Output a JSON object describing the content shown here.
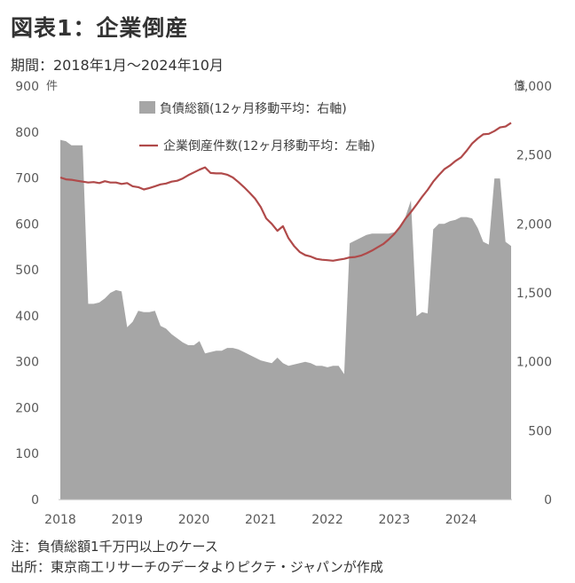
{
  "header": {
    "title": "図表1：企業倒産",
    "subtitle": "期間：2018年1月～2024年10月"
  },
  "notes": {
    "note": "注：負債総額1千万円以上のケース",
    "source": "出所：東京商工リサーチのデータよりピクテ・ジャパンが作成"
  },
  "chart_data": {
    "type": "area",
    "left_axis": {
      "unit": "件",
      "ylim": [
        0,
        900
      ],
      "ticks": [
        "0",
        "100",
        "200",
        "300",
        "400",
        "500",
        "600",
        "700",
        "800",
        "900"
      ]
    },
    "right_axis": {
      "unit": "億",
      "ylim": [
        0,
        3000
      ],
      "ticks": [
        "0",
        "500",
        "1,000",
        "1,500",
        "2,000",
        "2,500",
        "3,000"
      ]
    },
    "x_ticks": [
      "2018",
      "2019",
      "2020",
      "2021",
      "2022",
      "2023",
      "2024"
    ],
    "grid": false,
    "legend_position": "top-center",
    "colors": {
      "area": "#a6a6a6",
      "line": "#b04a4a",
      "text": "#595959"
    },
    "series": [
      {
        "name": "負債総額(12ヶ月移動平均：右軸)",
        "kind": "area",
        "axis": "right",
        "x": [
          "2018-01",
          "2018-02",
          "2018-03",
          "2018-04",
          "2018-05",
          "2018-06",
          "2018-07",
          "2018-08",
          "2018-09",
          "2018-10",
          "2018-11",
          "2018-12",
          "2019-01",
          "2019-02",
          "2019-03",
          "2019-04",
          "2019-05",
          "2019-06",
          "2019-07",
          "2019-08",
          "2019-09",
          "2019-10",
          "2019-11",
          "2019-12",
          "2020-01",
          "2020-02",
          "2020-03",
          "2020-04",
          "2020-05",
          "2020-06",
          "2020-07",
          "2020-08",
          "2020-09",
          "2020-10",
          "2020-11",
          "2020-12",
          "2021-01",
          "2021-02",
          "2021-03",
          "2021-04",
          "2021-05",
          "2021-06",
          "2021-07",
          "2021-08",
          "2021-09",
          "2021-10",
          "2021-11",
          "2021-12",
          "2022-01",
          "2022-02",
          "2022-03",
          "2022-04",
          "2022-05",
          "2022-06",
          "2022-07",
          "2022-08",
          "2022-09",
          "2022-10",
          "2022-11",
          "2022-12",
          "2023-01",
          "2023-02",
          "2023-03",
          "2023-04",
          "2023-05",
          "2023-06",
          "2023-07",
          "2023-08",
          "2023-09",
          "2023-10",
          "2023-11",
          "2023-12",
          "2024-01",
          "2024-02",
          "2024-03",
          "2024-04",
          "2024-05",
          "2024-06",
          "2024-07",
          "2024-08",
          "2024-09",
          "2024-10"
        ],
        "values": [
          2610,
          2600,
          2570,
          2570,
          2570,
          1420,
          1420,
          1430,
          1460,
          1500,
          1520,
          1510,
          1250,
          1290,
          1370,
          1360,
          1360,
          1370,
          1260,
          1240,
          1200,
          1170,
          1140,
          1120,
          1120,
          1150,
          1060,
          1070,
          1080,
          1080,
          1100,
          1100,
          1090,
          1070,
          1050,
          1030,
          1010,
          1000,
          990,
          1030,
          990,
          970,
          980,
          990,
          1000,
          990,
          970,
          970,
          960,
          970,
          970,
          910,
          1860,
          1880,
          1900,
          1920,
          1930,
          1930,
          1930,
          1930,
          1940,
          1970,
          2050,
          2170,
          1330,
          1360,
          1350,
          1960,
          2000,
          2000,
          2020,
          2030,
          2050,
          2050,
          2040,
          1970,
          1870,
          1850,
          2330,
          2330,
          1870,
          1840
        ]
      },
      {
        "name": "企業倒産件数(12ヶ月移動平均：左軸)",
        "kind": "line",
        "axis": "left",
        "x": [
          "2018-01",
          "2018-02",
          "2018-03",
          "2018-04",
          "2018-05",
          "2018-06",
          "2018-07",
          "2018-08",
          "2018-09",
          "2018-10",
          "2018-11",
          "2018-12",
          "2019-01",
          "2019-02",
          "2019-03",
          "2019-04",
          "2019-05",
          "2019-06",
          "2019-07",
          "2019-08",
          "2019-09",
          "2019-10",
          "2019-11",
          "2019-12",
          "2020-01",
          "2020-02",
          "2020-03",
          "2020-04",
          "2020-05",
          "2020-06",
          "2020-07",
          "2020-08",
          "2020-09",
          "2020-10",
          "2020-11",
          "2020-12",
          "2021-01",
          "2021-02",
          "2021-03",
          "2021-04",
          "2021-05",
          "2021-06",
          "2021-07",
          "2021-08",
          "2021-09",
          "2021-10",
          "2021-11",
          "2021-12",
          "2022-01",
          "2022-02",
          "2022-03",
          "2022-04",
          "2022-05",
          "2022-06",
          "2022-07",
          "2022-08",
          "2022-09",
          "2022-10",
          "2022-11",
          "2022-12",
          "2023-01",
          "2023-02",
          "2023-03",
          "2023-04",
          "2023-05",
          "2023-06",
          "2023-07",
          "2023-08",
          "2023-09",
          "2023-10",
          "2023-11",
          "2023-12",
          "2024-01",
          "2024-02",
          "2024-03",
          "2024-04",
          "2024-05",
          "2024-06",
          "2024-07",
          "2024-08",
          "2024-09",
          "2024-10"
        ],
        "values": [
          701,
          697,
          696,
          694,
          692,
          690,
          691,
          689,
          693,
          690,
          690,
          687,
          689,
          682,
          680,
          675,
          678,
          682,
          686,
          688,
          692,
          694,
          699,
          706,
          712,
          718,
          723,
          711,
          710,
          710,
          707,
          701,
          691,
          680,
          668,
          655,
          637,
          612,
          600,
          585,
          595,
          569,
          552,
          539,
          532,
          529,
          524,
          522,
          521,
          520,
          522,
          524,
          527,
          528,
          531,
          536,
          542,
          549,
          556,
          566,
          578,
          593,
          611,
          626,
          642,
          659,
          674,
          692,
          706,
          719,
          727,
          737,
          745,
          759,
          775,
          786,
          795,
          796,
          802,
          810,
          812,
          820
        ]
      }
    ]
  }
}
